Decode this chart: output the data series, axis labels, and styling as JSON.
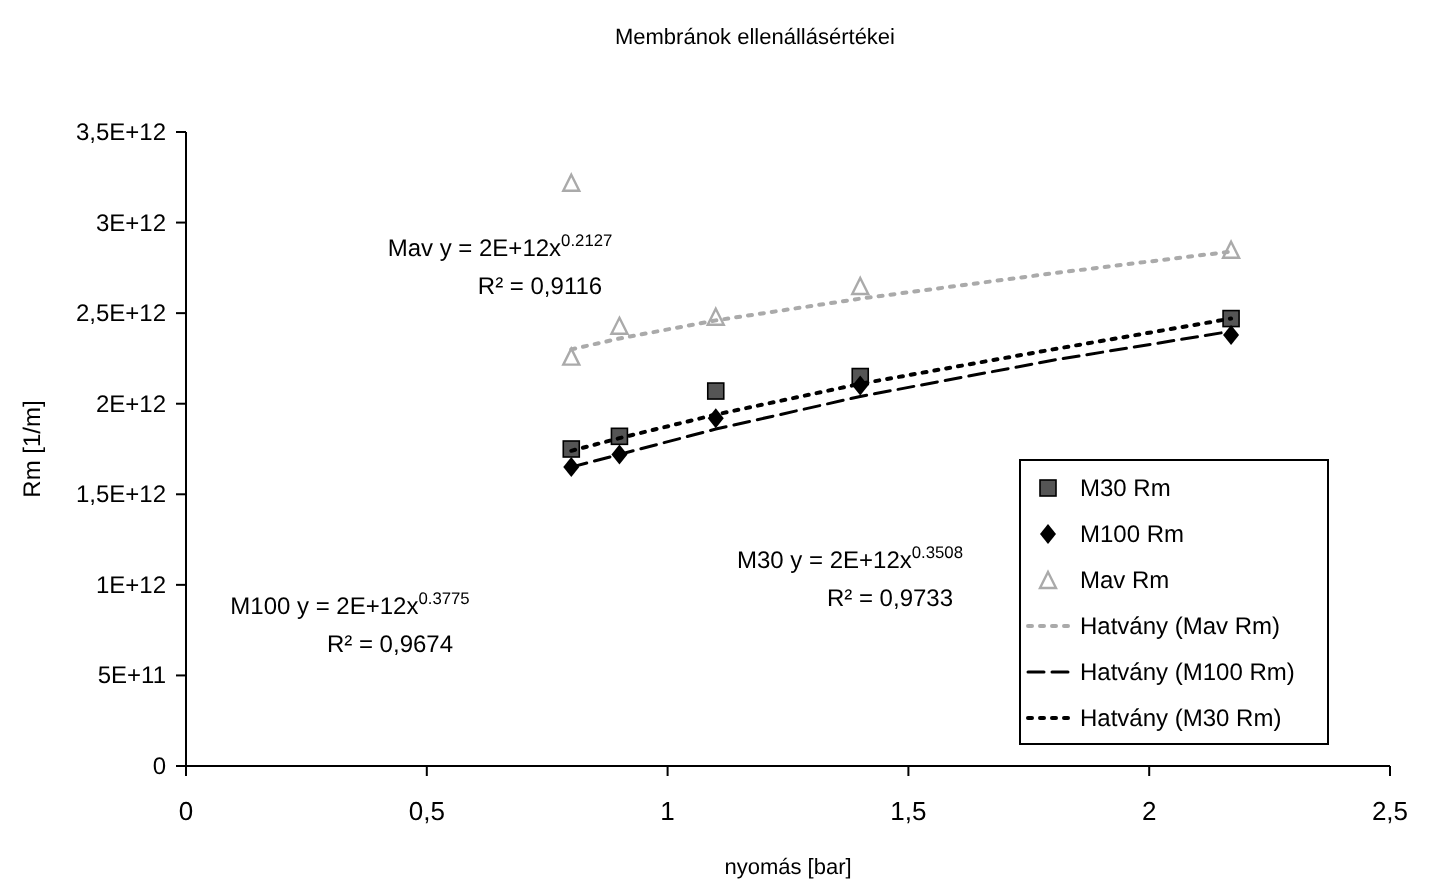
{
  "chart_data": {
    "type": "scatter",
    "title": "Membránok ellenállásértékei",
    "xlabel": "nyomás [bar]",
    "ylabel": "Rm [1/m]",
    "xlim": [
      0,
      2.5
    ],
    "xticks": [
      0,
      {
        "value": 0.5,
        "label": "0,5"
      },
      1,
      {
        "value": 1.5,
        "label": "1,5"
      },
      2,
      {
        "value": 2.5,
        "label": "2,5"
      }
    ],
    "ylim": [
      0,
      3500000000000
    ],
    "yticks": [
      0,
      {
        "value": 500000000000,
        "label": "5E+11"
      },
      {
        "value": 1000000000000,
        "label": "1E+12"
      },
      {
        "value": 1500000000000,
        "label": "1,5E+12"
      },
      {
        "value": 2000000000000,
        "label": "2E+12"
      },
      {
        "value": 2500000000000,
        "label": "2,5E+12"
      },
      {
        "value": 3000000000000,
        "label": "3E+12"
      },
      {
        "value": 3500000000000,
        "label": "3,5E+12"
      }
    ],
    "legend": "bottom right",
    "grid": false,
    "series": [
      {
        "name": "M30 Rm",
        "marker": "square",
        "color": "#555555",
        "x": [
          0.8,
          0.9,
          1.1,
          1.4,
          2.17
        ],
        "values": [
          1750000000000,
          1820000000000,
          2070000000000,
          2150000000000,
          2470000000000
        ]
      },
      {
        "name": "M100 Rm",
        "marker": "diamond",
        "color": "#000000",
        "x": [
          0.8,
          0.9,
          1.1,
          1.4,
          2.17
        ],
        "values": [
          1650000000000,
          1720000000000,
          1920000000000,
          2100000000000,
          2380000000000
        ]
      },
      {
        "name": "Mav Rm",
        "marker": "triangle",
        "color": "#aaaaaa",
        "x": [
          0.8,
          0.8,
          0.9,
          1.1,
          1.4,
          2.17
        ],
        "values": [
          2260000000000,
          3220000000000,
          2430000000000,
          2480000000000,
          2650000000000,
          2850000000000
        ]
      },
      {
        "name": "Hatvány (Mav Rm)",
        "type": "line",
        "line_style": "dotted",
        "color": "#aaaaaa",
        "x": [
          0.8,
          0.9,
          1.1,
          1.4,
          1.8,
          2.17
        ],
        "values": [
          2300000000000,
          2360000000000,
          2460000000000,
          2580000000000,
          2720000000000,
          2840000000000
        ]
      },
      {
        "name": "Hatvány (M100 Rm)",
        "type": "line",
        "line_style": "dashed",
        "color": "#000000",
        "x": [
          0.8,
          0.9,
          1.1,
          1.4,
          1.8,
          2.17
        ],
        "values": [
          1650000000000,
          1720000000000,
          1860000000000,
          2040000000000,
          2240000000000,
          2400000000000
        ]
      },
      {
        "name": "Hatvány (M30 Rm)",
        "type": "line",
        "line_style": "dotted",
        "color": "#000000",
        "x": [
          0.8,
          0.9,
          1.1,
          1.4,
          1.8,
          2.17
        ],
        "values": [
          1740000000000,
          1810000000000,
          1940000000000,
          2110000000000,
          2300000000000,
          2470000000000
        ]
      }
    ],
    "annotations": [
      "Mav y = 2E+12x$^{0.2127}$",
      "R² = 0,9116",
      "M100 y = 2E+12x$^{0.3775}$",
      "R² = 0,9674",
      "M30 y = 2E+12x$^{0.3508}$",
      "R² = 0,9733"
    ]
  }
}
